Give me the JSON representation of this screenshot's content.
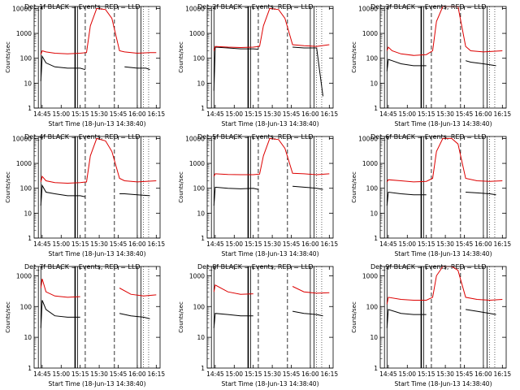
{
  "colors": {
    "events": "#000000",
    "lld": "#dd0000",
    "axis": "#000000",
    "background": "#ffffff"
  },
  "chart_data": [
    {
      "type": "line",
      "title": "Det_1f BLACK = Events, RED = LLD",
      "xlabel": "Start Time (18-Jun-13 14:38:40)",
      "ylabel": "Counts/sec",
      "scale": "log",
      "ylim": [
        1,
        12000
      ],
      "xlim": [
        "14:38:40",
        "16:18:00"
      ],
      "x_ticks": [
        "14:45",
        "15:00",
        "15:15",
        "15:30",
        "15:45",
        "16:00",
        "16:15"
      ],
      "y_ticks": [
        "1",
        "10",
        "100",
        "1000",
        "10000"
      ],
      "grid": false,
      "series": [
        {
          "name": "Events",
          "x": [
            "14:44",
            "14:45",
            "14:48",
            "14:55",
            "15:05",
            "15:15",
            "15:19",
            "15:21",
            "15:28",
            "15:40",
            "15:46",
            "15:50",
            "16:00",
            "16:07",
            "16:10"
          ],
          "values": [
            12,
            120,
            65,
            45,
            40,
            40,
            35,
            null,
            null,
            null,
            null,
            45,
            40,
            40,
            35
          ]
        },
        {
          "name": "LLD",
          "x": [
            "14:44",
            "14:45",
            "14:48",
            "14:55",
            "15:05",
            "15:15",
            "15:20",
            "15:23",
            "15:28",
            "15:35",
            "15:40",
            "15:46",
            "15:50",
            "16:00",
            "16:10",
            "16:15"
          ],
          "values": [
            140,
            200,
            180,
            160,
            150,
            160,
            170,
            2000,
            10000,
            9000,
            4000,
            200,
            180,
            160,
            170,
            170
          ]
        }
      ]
    },
    {
      "type": "line",
      "title": "Det_2f BLACK = Events, RED = LLD",
      "xlabel": "Start Time (18-Jun-13 14:38:40)",
      "ylabel": "Counts/sec",
      "scale": "log",
      "ylim": [
        1,
        12000
      ],
      "xlim": [
        "14:38:40",
        "16:18:00"
      ],
      "x_ticks": [
        "14:45",
        "15:00",
        "15:15",
        "15:30",
        "15:45",
        "16:00",
        "16:15"
      ],
      "y_ticks": [
        "1",
        "10",
        "100",
        "1000",
        "10000"
      ],
      "grid": false,
      "series": [
        {
          "name": "Events",
          "x": [
            "14:44",
            "14:45",
            "14:55",
            "15:05",
            "15:15",
            "15:19",
            "15:21",
            "15:28",
            "15:40",
            "15:46",
            "15:55",
            "16:05",
            "16:10"
          ],
          "values": [
            5,
            280,
            260,
            240,
            240,
            230,
            null,
            null,
            null,
            280,
            260,
            260,
            3
          ]
        },
        {
          "name": "LLD",
          "x": [
            "14:44",
            "14:45",
            "14:55",
            "15:05",
            "15:15",
            "15:20",
            "15:23",
            "15:28",
            "15:35",
            "15:40",
            "15:46",
            "15:55",
            "16:05",
            "16:15"
          ],
          "values": [
            200,
            300,
            280,
            270,
            280,
            300,
            2000,
            10000,
            9000,
            4000,
            350,
            320,
            300,
            350
          ]
        }
      ]
    },
    {
      "type": "line",
      "title": "Det_3f BLACK = Events, RED = LLD",
      "xlabel": "Start Time (18-Jun-13 14:38:40)",
      "ylabel": "Counts/sec",
      "scale": "log",
      "ylim": [
        1,
        12000
      ],
      "xlim": [
        "14:38:40",
        "16:18:00"
      ],
      "x_ticks": [
        "14:45",
        "15:00",
        "15:15",
        "15:30",
        "15:45",
        "16:00",
        "16:15"
      ],
      "y_ticks": [
        "1",
        "10",
        "100",
        "1000",
        "10000"
      ],
      "grid": false,
      "series": [
        {
          "name": "Events",
          "x": [
            "14:44",
            "14:45",
            "14:48",
            "14:55",
            "15:05",
            "15:15",
            "15:20",
            "15:28",
            "15:40",
            "15:46",
            "15:50",
            "16:00",
            "16:10"
          ],
          "values": [
            30,
            90,
            80,
            60,
            50,
            50,
            null,
            null,
            null,
            80,
            70,
            60,
            50
          ]
        },
        {
          "name": "LLD",
          "x": [
            "14:44",
            "14:45",
            "14:48",
            "14:55",
            "15:05",
            "15:15",
            "15:20",
            "15:23",
            "15:28",
            "15:40",
            "15:46",
            "15:50",
            "16:00",
            "16:15"
          ],
          "values": [
            200,
            280,
            200,
            150,
            130,
            140,
            200,
            3000,
            12000,
            12000,
            300,
            200,
            180,
            200
          ]
        }
      ]
    },
    {
      "type": "line",
      "title": "Det_4f BLACK = Events, RED = LLD",
      "xlabel": "Start Time (18-Jun-13 14:38:40)",
      "ylabel": "Counts/sec",
      "scale": "log",
      "ylim": [
        1,
        12000
      ],
      "xlim": [
        "14:38:40",
        "16:18:00"
      ],
      "x_ticks": [
        "14:45",
        "15:00",
        "15:15",
        "15:30",
        "15:45",
        "16:00",
        "16:15"
      ],
      "y_ticks": [
        "1",
        "10",
        "100",
        "1000",
        "10000"
      ],
      "grid": false,
      "series": [
        {
          "name": "Events",
          "x": [
            "14:44",
            "14:45",
            "14:48",
            "14:55",
            "15:05",
            "15:15",
            "15:19",
            "15:28",
            "15:40",
            "15:46",
            "15:50",
            "16:00",
            "16:10"
          ],
          "values": [
            20,
            130,
            70,
            60,
            50,
            50,
            45,
            null,
            null,
            60,
            60,
            55,
            50
          ]
        },
        {
          "name": "LLD",
          "x": [
            "14:44",
            "14:45",
            "14:48",
            "14:55",
            "15:05",
            "15:15",
            "15:20",
            "15:23",
            "15:28",
            "15:35",
            "15:40",
            "15:46",
            "15:50",
            "16:00",
            "16:15"
          ],
          "values": [
            180,
            300,
            200,
            170,
            160,
            170,
            180,
            2000,
            10000,
            8000,
            3000,
            250,
            200,
            180,
            200
          ]
        }
      ]
    },
    {
      "type": "line",
      "title": "Det_5f BLACK = Events, RED = LLD",
      "xlabel": "Start Time (18-Jun-13 14:38:40)",
      "ylabel": "Counts/sec",
      "scale": "log",
      "ylim": [
        1,
        12000
      ],
      "xlim": [
        "14:38:40",
        "16:18:00"
      ],
      "x_ticks": [
        "14:45",
        "15:00",
        "15:15",
        "15:30",
        "15:45",
        "16:00",
        "16:15"
      ],
      "y_ticks": [
        "1",
        "10",
        "100",
        "1000",
        "10000"
      ],
      "grid": false,
      "series": [
        {
          "name": "Events",
          "x": [
            "14:44",
            "14:45",
            "14:55",
            "15:05",
            "15:15",
            "15:19",
            "15:28",
            "15:40",
            "15:46",
            "15:55",
            "16:05",
            "16:10"
          ],
          "values": [
            20,
            110,
            100,
            95,
            100,
            90,
            null,
            null,
            120,
            110,
            100,
            90
          ]
        },
        {
          "name": "LLD",
          "x": [
            "14:44",
            "14:45",
            "14:55",
            "15:05",
            "15:15",
            "15:20",
            "15:23",
            "15:28",
            "15:35",
            "15:40",
            "15:46",
            "15:55",
            "16:05",
            "16:15"
          ],
          "values": [
            300,
            380,
            360,
            350,
            350,
            370,
            2000,
            10000,
            9000,
            4000,
            400,
            380,
            350,
            380
          ]
        }
      ]
    },
    {
      "type": "line",
      "title": "Det_6f BLACK = Events, RED = LLD",
      "xlabel": "Start Time (18-Jun-13 14:38:40)",
      "ylabel": "Counts/sec",
      "scale": "log",
      "ylim": [
        1,
        12000
      ],
      "xlim": [
        "14:38:40",
        "16:18:00"
      ],
      "x_ticks": [
        "14:45",
        "15:00",
        "15:15",
        "15:30",
        "15:45",
        "16:00",
        "16:15"
      ],
      "y_ticks": [
        "1",
        "10",
        "100",
        "1000",
        "10000"
      ],
      "grid": false,
      "series": [
        {
          "name": "Events",
          "x": [
            "14:44",
            "14:45",
            "14:55",
            "15:05",
            "15:15",
            "15:20",
            "15:28",
            "15:40",
            "15:46",
            "15:55",
            "16:05",
            "16:10"
          ],
          "values": [
            20,
            70,
            60,
            55,
            55,
            null,
            null,
            null,
            70,
            65,
            60,
            55
          ]
        },
        {
          "name": "LLD",
          "x": [
            "14:44",
            "14:45",
            "14:55",
            "15:05",
            "15:15",
            "15:20",
            "15:23",
            "15:28",
            "15:35",
            "15:40",
            "15:46",
            "15:55",
            "16:05",
            "16:15"
          ],
          "values": [
            180,
            220,
            200,
            180,
            190,
            250,
            3000,
            10000,
            10000,
            6000,
            250,
            200,
            190,
            200
          ]
        }
      ]
    },
    {
      "type": "line",
      "title": "Det_7f BLACK = Events, RED = LLD",
      "xlabel": "Start Time (18-Jun-13 14:38:40)",
      "ylabel": "Counts/sec",
      "scale": "log",
      "ylim": [
        1,
        2000
      ],
      "xlim": [
        "14:38:40",
        "16:18:00"
      ],
      "x_ticks": [
        "14:45",
        "15:00",
        "15:15",
        "15:30",
        "15:45",
        "16:00",
        "16:15"
      ],
      "y_ticks": [
        "1",
        "10",
        "100",
        "1000"
      ],
      "grid": false,
      "series": [
        {
          "name": "Events",
          "x": [
            "14:44",
            "14:45",
            "14:48",
            "14:55",
            "15:05",
            "15:15",
            "15:20",
            "15:28",
            "15:40",
            "15:46",
            "15:55",
            "16:05",
            "16:10"
          ],
          "values": [
            20,
            160,
            80,
            50,
            45,
            45,
            null,
            null,
            null,
            60,
            50,
            45,
            40
          ]
        },
        {
          "name": "LLD",
          "x": [
            "14:44",
            "14:45",
            "14:48",
            "14:55",
            "15:05",
            "15:15",
            "15:20",
            "15:28",
            "15:40",
            "15:46",
            "15:55",
            "16:05",
            "16:15"
          ],
          "values": [
            400,
            800,
            300,
            220,
            200,
            210,
            null,
            null,
            null,
            400,
            250,
            220,
            240
          ]
        }
      ]
    },
    {
      "type": "line",
      "title": "Det_8f BLACK = Events, RED = LLD",
      "xlabel": "Start Time (18-Jun-13 14:38:40)",
      "ylabel": "Counts/sec",
      "scale": "log",
      "ylim": [
        1,
        2000
      ],
      "xlim": [
        "14:38:40",
        "16:18:00"
      ],
      "x_ticks": [
        "14:45",
        "15:00",
        "15:15",
        "15:30",
        "15:45",
        "16:00",
        "16:15"
      ],
      "y_ticks": [
        "1",
        "10",
        "100",
        "1000"
      ],
      "grid": false,
      "series": [
        {
          "name": "Events",
          "x": [
            "14:44",
            "14:45",
            "14:55",
            "15:05",
            "15:15",
            "15:20",
            "15:28",
            "15:40",
            "15:46",
            "15:55",
            "16:05",
            "16:10"
          ],
          "values": [
            20,
            60,
            55,
            50,
            50,
            null,
            null,
            null,
            70,
            60,
            55,
            50
          ]
        },
        {
          "name": "LLD",
          "x": [
            "14:44",
            "14:45",
            "14:55",
            "15:05",
            "15:15",
            "15:20",
            "15:28",
            "15:40",
            "15:46",
            "15:55",
            "16:05",
            "16:15"
          ],
          "values": [
            300,
            500,
            300,
            250,
            260,
            null,
            null,
            null,
            450,
            300,
            270,
            280
          ]
        }
      ]
    },
    {
      "type": "line",
      "title": "Det_9f BLACK = Events, RED = LLD",
      "xlabel": "Start Time (18-Jun-13 14:38:40)",
      "ylabel": "Counts/sec",
      "scale": "log",
      "ylim": [
        1,
        2000
      ],
      "xlim": [
        "14:38:40",
        "16:18:00"
      ],
      "x_ticks": [
        "14:45",
        "15:00",
        "15:15",
        "15:30",
        "15:45",
        "16:00",
        "16:15"
      ],
      "y_ticks": [
        "1",
        "10",
        "100",
        "1000"
      ],
      "grid": false,
      "series": [
        {
          "name": "Events",
          "x": [
            "14:44",
            "14:45",
            "14:55",
            "15:05",
            "15:15",
            "15:20",
            "15:28",
            "15:40",
            "15:46",
            "15:55",
            "16:05",
            "16:10"
          ],
          "values": [
            20,
            80,
            60,
            55,
            55,
            null,
            null,
            null,
            80,
            70,
            60,
            55
          ]
        },
        {
          "name": "LLD",
          "x": [
            "14:44",
            "14:45",
            "14:55",
            "15:05",
            "15:15",
            "15:20",
            "15:23",
            "15:28",
            "15:35",
            "15:40",
            "15:46",
            "15:55",
            "16:05",
            "16:15"
          ],
          "values": [
            120,
            200,
            170,
            160,
            160,
            200,
            1000,
            2000,
            2000,
            1500,
            200,
            170,
            160,
            170
          ]
        }
      ]
    }
  ]
}
